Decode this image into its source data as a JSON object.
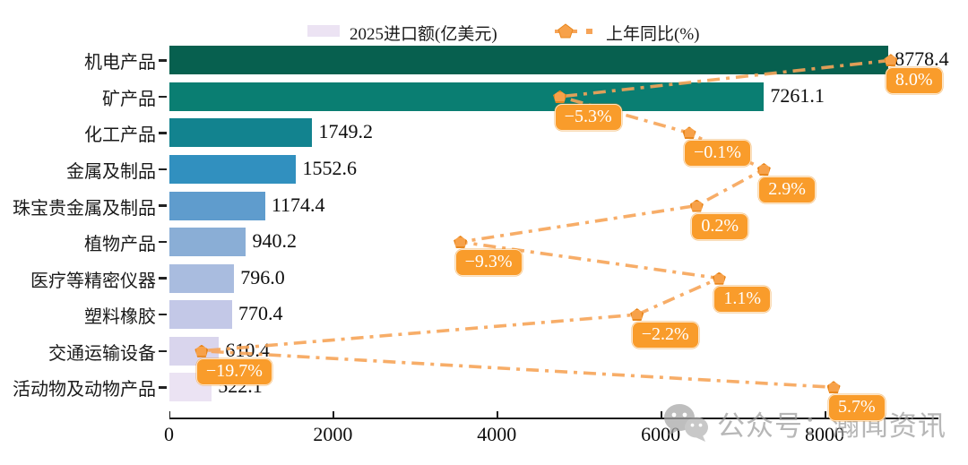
{
  "legend": {
    "bar_label": "2025进口额(亿美元)",
    "line_label": "上年同比(%)",
    "bar_swatch_color": "#ECE3F3"
  },
  "watermark": {
    "text": "公众号：瀚闻资讯"
  },
  "chart_data": {
    "type": "bar",
    "subtype": "horizontal bars with overlaid line on secondary percent axis",
    "categories": [
      "机电产品",
      "矿产品",
      "化工产品",
      "金属及制品",
      "珠宝贵金属及制品",
      "植物产品",
      "医疗等精密仪器",
      "塑料橡胶",
      "交通运输设备",
      "活动物及动物产品"
    ],
    "series": [
      {
        "name": "2025进口额(亿美元)",
        "type": "bar",
        "values": [
          8778.4,
          7261.1,
          1749.2,
          1552.6,
          1174.4,
          940.2,
          796.0,
          770.4,
          610.4,
          522.1
        ]
      },
      {
        "name": "上年同比(%)",
        "type": "line",
        "values": [
          8.0,
          -5.3,
          -0.1,
          2.9,
          0.2,
          -9.3,
          1.1,
          -2.2,
          -19.7,
          5.7
        ]
      }
    ],
    "value_labels": [
      "8778.4",
      "7261.1",
      "1749.2",
      "1552.6",
      "1174.4",
      "940.2",
      "796.0",
      "770.4",
      "610.4",
      "522.1"
    ],
    "pct_labels": [
      "8.0%",
      "−5.3%",
      "−0.1%",
      "2.9%",
      "0.2%",
      "−9.3%",
      "1.1%",
      "−2.2%",
      "−19.7%",
      "5.7%"
    ],
    "x_axis": {
      "tick_labels": [
        "0",
        "2000",
        "4000",
        "6000",
        "8000"
      ],
      "tick_values": [
        0,
        2000,
        4000,
        6000,
        8000
      ],
      "range": [
        0,
        9440
      ]
    },
    "pct_axis": {
      "range": [
        -21.0,
        10.1
      ],
      "visible": false
    },
    "bar_colors": [
      "#07604F",
      "#0A7E72",
      "#12838F",
      "#3190BF",
      "#5F9CCD",
      "#8AAED6",
      "#A9BCDF",
      "#C3C8E7",
      "#D9D5ED",
      "#EBE3F3"
    ],
    "line_color": "#F6A458",
    "marker_fill": "#F7A149",
    "marker_edge": "#E8871E",
    "label_box_color": "#F99C2B",
    "legend_position": "top",
    "grid": false
  }
}
